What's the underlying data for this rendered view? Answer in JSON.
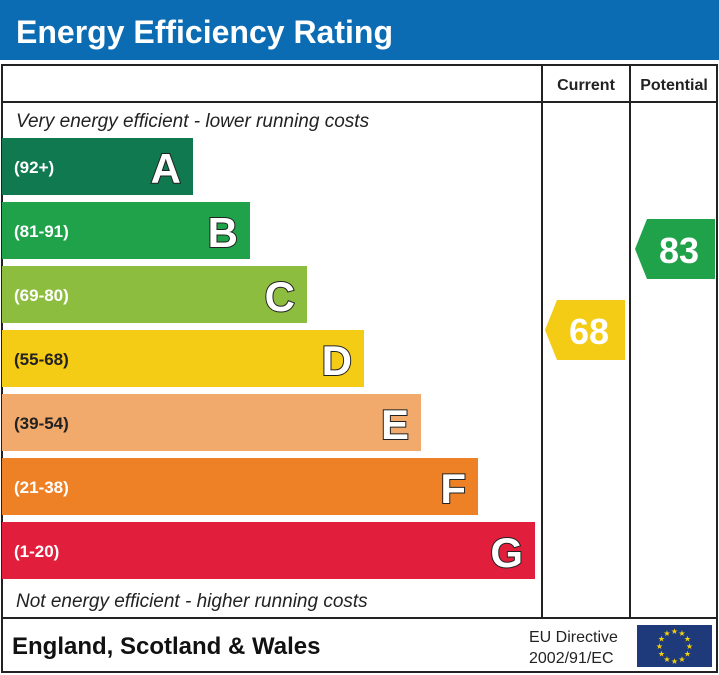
{
  "title": "Energy Efficiency Rating",
  "columns": {
    "current": "Current",
    "potential": "Potential"
  },
  "top_note": "Very energy efficient - lower running costs",
  "bottom_note": "Not energy efficient - higher running costs",
  "footer": {
    "region": "England, Scotland & Wales",
    "directive_line1": "EU Directive",
    "directive_line2": "2002/91/EC",
    "flag_icon": "eu-flag-icon"
  },
  "colors": {
    "header": "#0b6cb4",
    "flag": "#1f3a7a",
    "star": "#f5d10a"
  },
  "chart_data": {
    "type": "bar",
    "bands": [
      {
        "letter": "A",
        "range": "(92+)",
        "color": "#10794f"
      },
      {
        "letter": "B",
        "range": "(81-91)",
        "color": "#20a24b"
      },
      {
        "letter": "C",
        "range": "(69-80)",
        "color": "#8dbd3f"
      },
      {
        "letter": "D",
        "range": "(55-68)",
        "color": "#f4cb15"
      },
      {
        "letter": "E",
        "range": "(39-54)",
        "color": "#f2aa6c"
      },
      {
        "letter": "F",
        "range": "(21-38)",
        "color": "#ee8126"
      },
      {
        "letter": "G",
        "range": "(1-20)",
        "color": "#e21e3d"
      }
    ],
    "current": {
      "value": 68,
      "band": "D",
      "color": "#f4cb15"
    },
    "potential": {
      "value": 83,
      "band": "B",
      "color": "#20a24b"
    }
  }
}
